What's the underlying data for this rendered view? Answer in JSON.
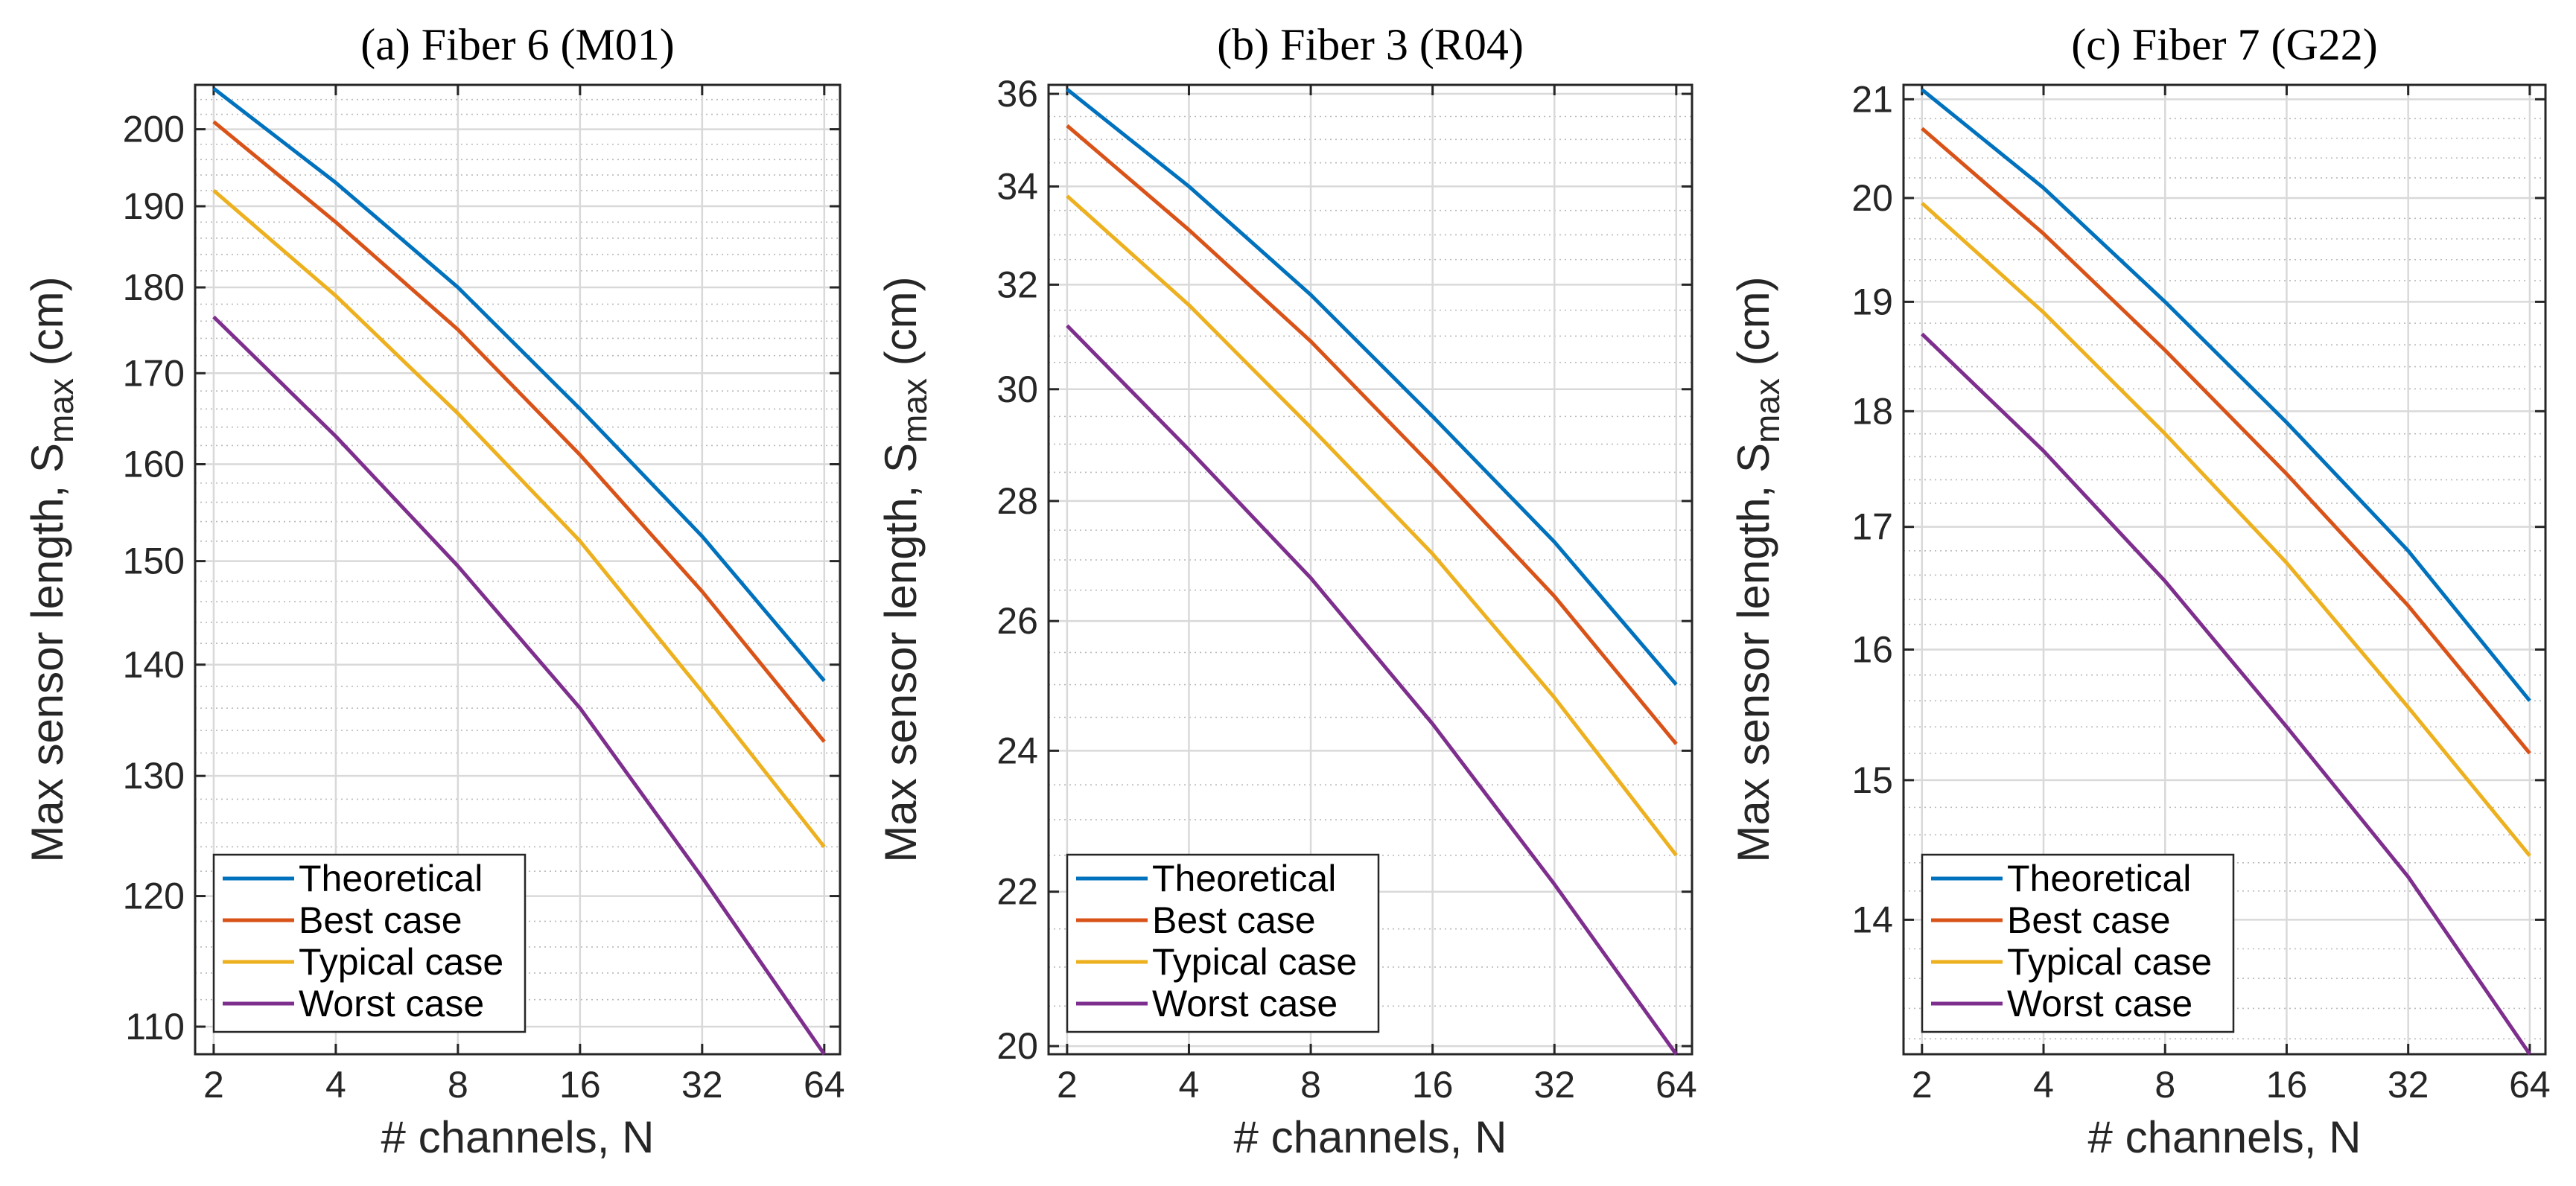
{
  "chart_data": [
    {
      "type": "line",
      "title": "(a) Fiber 6 (M01)",
      "xlabel": "# channels, N",
      "ylabel": {
        "main": "Max sensor length, S",
        "sub": "max",
        "unit": " (cm)"
      },
      "xscale": "log2",
      "yscale": "log",
      "x": [
        2,
        4,
        8,
        16,
        32,
        64
      ],
      "xticks": [
        "2",
        "4",
        "8",
        "16",
        "32",
        "64"
      ],
      "xlim": [
        1.8,
        70
      ],
      "ylim": [
        108,
        206
      ],
      "yticks": [
        110,
        120,
        130,
        140,
        150,
        160,
        170,
        180,
        190,
        200
      ],
      "grid": true,
      "legend_position": "bottom-left",
      "series": [
        {
          "name": "Theoretical",
          "color": "#0072BD",
          "values": [
            205.5,
            193,
            180,
            166,
            152.5,
            138.5
          ]
        },
        {
          "name": "Best case",
          "color": "#D95319",
          "values": [
            201,
            188,
            175,
            161,
            147,
            133
          ]
        },
        {
          "name": "Typical case",
          "color": "#EDB120",
          "values": [
            192,
            179,
            165.5,
            152,
            137.5,
            124
          ]
        },
        {
          "name": "Worst case",
          "color": "#7E2F8E",
          "values": [
            176.5,
            163,
            149.5,
            136,
            121.5,
            108
          ]
        }
      ]
    },
    {
      "type": "line",
      "title": "(b) Fiber 3 (R04)",
      "xlabel": "# channels, N",
      "ylabel": {
        "main": "Max sensor length, S",
        "sub": "max",
        "unit": " (cm)"
      },
      "xscale": "log2",
      "yscale": "log",
      "x": [
        2,
        4,
        8,
        16,
        32,
        64
      ],
      "xticks": [
        "2",
        "4",
        "8",
        "16",
        "32",
        "64"
      ],
      "xlim": [
        1.8,
        70
      ],
      "ylim": [
        19.9,
        36.2
      ],
      "yticks": [
        20,
        22,
        24,
        26,
        28,
        30,
        32,
        34,
        36
      ],
      "grid": true,
      "legend_position": "bottom-left",
      "series": [
        {
          "name": "Theoretical",
          "color": "#0072BD",
          "values": [
            36.1,
            34,
            31.8,
            29.5,
            27.3,
            25
          ]
        },
        {
          "name": "Best case",
          "color": "#D95319",
          "values": [
            35.3,
            33.1,
            30.9,
            28.6,
            26.4,
            24.1
          ]
        },
        {
          "name": "Typical case",
          "color": "#EDB120",
          "values": [
            33.8,
            31.6,
            29.3,
            27.1,
            24.8,
            22.5
          ]
        },
        {
          "name": "Worst case",
          "color": "#7E2F8E",
          "values": [
            31.2,
            28.9,
            26.7,
            24.4,
            22.1,
            19.9
          ]
        }
      ]
    },
    {
      "type": "line",
      "title": "(c) Fiber 7 (G22)",
      "xlabel": "# channels, N",
      "ylabel": {
        "main": "Max sensor length, S",
        "sub": "max",
        "unit": " (cm)"
      },
      "xscale": "log2",
      "yscale": "log",
      "x": [
        2,
        4,
        8,
        16,
        32,
        64
      ],
      "xticks": [
        "2",
        "4",
        "8",
        "16",
        "32",
        "64"
      ],
      "xlim": [
        1.8,
        70
      ],
      "ylim": [
        13.1,
        21.15
      ],
      "yticks": [
        14,
        15,
        16,
        17,
        18,
        19,
        20,
        21
      ],
      "grid": true,
      "legend_position": "bottom-left",
      "series": [
        {
          "name": "Theoretical",
          "color": "#0072BD",
          "values": [
            21.1,
            20.1,
            19.0,
            17.9,
            16.8,
            15.6
          ]
        },
        {
          "name": "Best case",
          "color": "#D95319",
          "values": [
            20.7,
            19.65,
            18.55,
            17.45,
            16.35,
            15.2
          ]
        },
        {
          "name": "Typical case",
          "color": "#EDB120",
          "values": [
            19.95,
            18.9,
            17.8,
            16.7,
            15.55,
            14.45
          ]
        },
        {
          "name": "Worst case",
          "color": "#7E2F8E",
          "values": [
            18.7,
            17.65,
            16.55,
            15.4,
            14.3,
            13.1
          ]
        }
      ]
    }
  ]
}
